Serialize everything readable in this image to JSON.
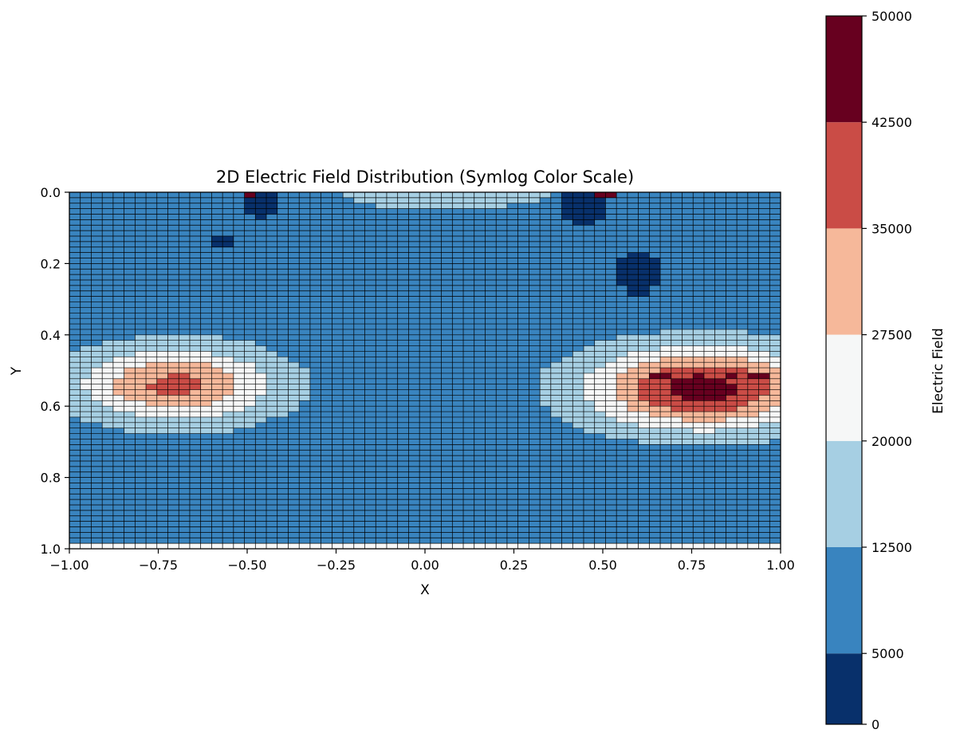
{
  "chart_data": {
    "type": "heatmap",
    "title": "2D Electric Field Distribution (Symlog Color Scale)",
    "xlabel": "X",
    "ylabel": "Y",
    "xlim": [
      -1.0,
      1.0
    ],
    "ylim": [
      1.0,
      0.0
    ],
    "y_inverted": true,
    "grid": true,
    "xticks": [
      "−1.00",
      "−0.75",
      "−0.50",
      "−0.25",
      "0.00",
      "0.25",
      "0.50",
      "0.75",
      "1.00"
    ],
    "xtick_values": [
      -1.0,
      -0.75,
      -0.5,
      -0.25,
      0.0,
      0.25,
      0.5,
      0.75,
      1.0
    ],
    "yticks": [
      "0.0",
      "0.2",
      "0.4",
      "0.6",
      "0.8",
      "1.0"
    ],
    "ytick_values": [
      0.0,
      0.2,
      0.4,
      0.6,
      0.8,
      1.0
    ],
    "grid_cols": 65,
    "grid_rows": 65,
    "colorbar": {
      "label": "Electric Field",
      "boundaries": [
        0,
        5000,
        12500,
        20000,
        27500,
        35000,
        42500,
        50000
      ],
      "tick_labels": [
        "0",
        "5000",
        "12500",
        "20000",
        "27500",
        "35000",
        "42500",
        "50000"
      ],
      "colors": [
        "#08306b",
        "#3984bf",
        "#a6cfe3",
        "#f6f7f7",
        "#f6b89a",
        "#ca4c46",
        "#67001f"
      ]
    },
    "features": {
      "left_lobe": {
        "cx": -0.7,
        "cy": 0.54,
        "rx": 0.27,
        "ry": 0.1,
        "amp": 37000
      },
      "right_lobe": {
        "cx": 0.78,
        "cy": 0.55,
        "rx": 0.31,
        "ry": 0.11,
        "amp": 46000
      },
      "top_band": {
        "cx": 0.05,
        "cy": 0.0,
        "rx": 0.3,
        "ry": 0.05,
        "amp": 19000
      },
      "low_spots": [
        {
          "x": -0.46,
          "y": 0.03,
          "rx": 0.05,
          "ry": 0.04
        },
        {
          "x": 0.45,
          "y": 0.04,
          "rx": 0.07,
          "ry": 0.05
        },
        {
          "x": -0.57,
          "y": 0.14,
          "rx": 0.02,
          "ry": 0.03
        },
        {
          "x": 0.6,
          "y": 0.23,
          "rx": 0.06,
          "ry": 0.06
        }
      ],
      "peak_spots": [
        {
          "x": -0.5,
          "y": 0.0
        },
        {
          "x": 0.51,
          "y": 0.0
        },
        {
          "x": 0.66,
          "y": 0.52
        },
        {
          "x": 0.76,
          "y": 0.52
        },
        {
          "x": 0.85,
          "y": 0.52
        },
        {
          "x": 0.94,
          "y": 0.52
        }
      ],
      "background": 8500
    }
  }
}
